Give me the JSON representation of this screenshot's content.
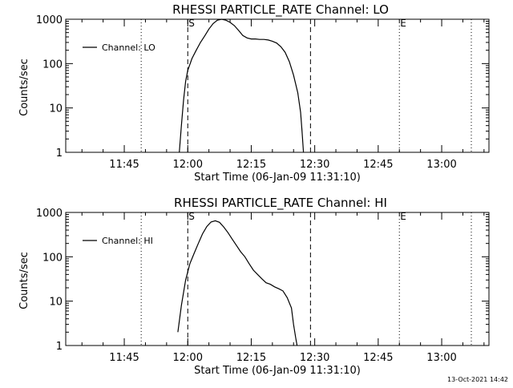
{
  "timestamp": "13-Oct-2021 14:42",
  "chart_data": [
    {
      "type": "line",
      "title": "RHESSI PARTICLE_RATE Channel: LO",
      "xlabel": "Start Time (06-Jan-09 11:31:10)",
      "ylabel": "Counts/sec",
      "yscale": "log",
      "ylim": [
        1,
        1000
      ],
      "xlim": [
        "11:31:10",
        "13:11:10"
      ],
      "xticks": [
        "11:45",
        "12:00",
        "12:15",
        "12:30",
        "12:45",
        "13:00"
      ],
      "yticks": [
        "1",
        "10",
        "100",
        "1000"
      ],
      "legend": "top-left",
      "series": [
        {
          "name": "Channel: LO",
          "x": [
            "11:58:00",
            "11:58:30",
            "11:59:00",
            "11:59:30",
            "12:00:00",
            "12:01:00",
            "12:02:00",
            "12:03:00",
            "12:04:00",
            "12:05:00",
            "12:06:00",
            "12:07:00",
            "12:08:00",
            "12:09:00",
            "12:10:00",
            "12:11:00",
            "12:12:00",
            "12:13:00",
            "12:14:00",
            "12:15:00",
            "12:16:00",
            "12:17:00",
            "12:18:00",
            "12:19:00",
            "12:20:00",
            "12:21:00",
            "12:22:00",
            "12:23:00",
            "12:24:00",
            "12:25:00",
            "12:26:00",
            "12:26:40",
            "12:27:00",
            "12:27:20"
          ],
          "y": [
            1,
            4,
            15,
            40,
            70,
            130,
            200,
            300,
            420,
            600,
            800,
            950,
            1000,
            950,
            850,
            720,
            560,
            430,
            380,
            360,
            360,
            350,
            350,
            340,
            320,
            290,
            240,
            180,
            110,
            55,
            22,
            8,
            3,
            1
          ]
        }
      ],
      "markers": [
        {
          "label": "S",
          "x": "12:00:00",
          "style": "dashed"
        },
        {
          "label": "",
          "x": "12:29:00",
          "style": "dashed"
        },
        {
          "label": "E",
          "x": "12:50:00",
          "style": "dotted"
        },
        {
          "label": "",
          "x": "11:49:00",
          "style": "dotted"
        },
        {
          "label": "",
          "x": "13:07:00",
          "style": "dotted"
        }
      ]
    },
    {
      "type": "line",
      "title": "RHESSI PARTICLE_RATE Channel: HI",
      "xlabel": "Start Time (06-Jan-09 11:31:10)",
      "ylabel": "Counts/sec",
      "yscale": "log",
      "ylim": [
        1,
        1000
      ],
      "xlim": [
        "11:31:10",
        "13:11:10"
      ],
      "xticks": [
        "11:45",
        "12:00",
        "12:15",
        "12:30",
        "12:45",
        "13:00"
      ],
      "yticks": [
        "1",
        "10",
        "100",
        "1000"
      ],
      "legend": "top-left",
      "series": [
        {
          "name": "Channel: HI",
          "x": [
            "11:57:40",
            "11:58:30",
            "11:59:30",
            "12:00:30",
            "12:01:30",
            "12:02:30",
            "12:03:30",
            "12:04:30",
            "12:05:30",
            "12:06:30",
            "12:07:30",
            "12:08:30",
            "12:09:30",
            "12:10:30",
            "12:11:30",
            "12:12:30",
            "12:13:30",
            "12:14:30",
            "12:15:30",
            "12:16:30",
            "12:17:30",
            "12:18:30",
            "12:19:30",
            "12:20:30",
            "12:21:30",
            "12:22:30",
            "12:23:30",
            "12:24:30",
            "12:25:00",
            "12:25:30",
            "12:25:50"
          ],
          "y": [
            2,
            8,
            30,
            70,
            120,
            200,
            330,
            480,
            610,
            650,
            600,
            470,
            350,
            250,
            180,
            130,
            100,
            70,
            50,
            40,
            32,
            26,
            24,
            21,
            19,
            17,
            12,
            7,
            3,
            1.5,
            1
          ]
        }
      ],
      "markers": [
        {
          "label": "S",
          "x": "12:00:00",
          "style": "dashed"
        },
        {
          "label": "",
          "x": "12:29:00",
          "style": "dashed"
        },
        {
          "label": "E",
          "x": "12:50:00",
          "style": "dotted"
        },
        {
          "label": "",
          "x": "11:49:00",
          "style": "dotted"
        },
        {
          "label": "",
          "x": "13:07:00",
          "style": "dotted"
        }
      ]
    }
  ]
}
